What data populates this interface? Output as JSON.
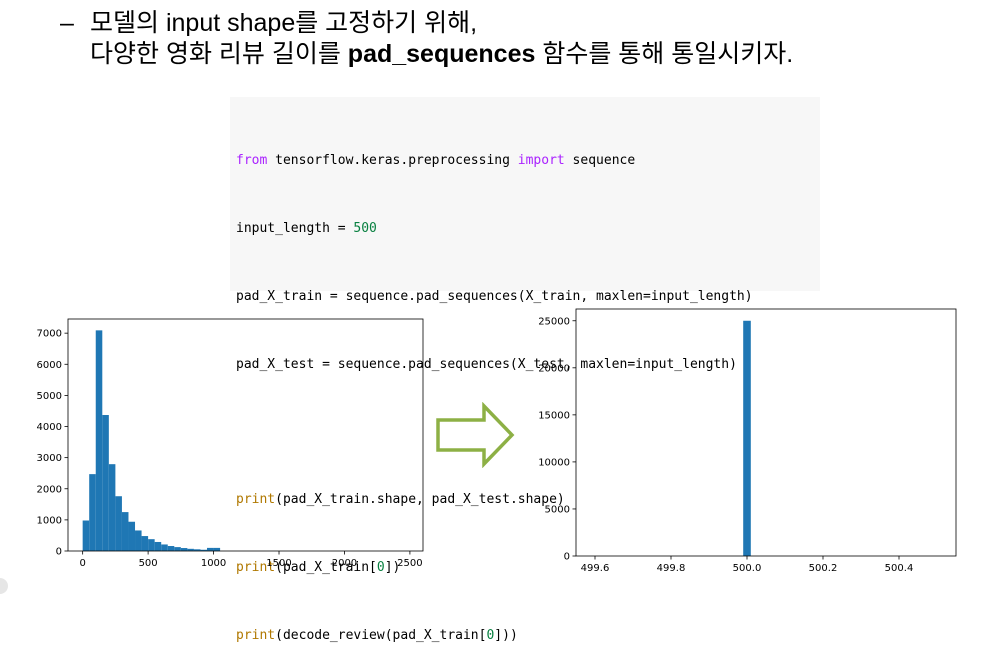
{
  "bullets": {
    "dash": "–",
    "line1_a": "모델의 ",
    "line1_b": "input shape",
    "line1_c": "를 고정하기 위해,",
    "line2_a": "다양한 영화 리뷰 길이를 ",
    "line2_b": "pad_sequences",
    "line2_c": " 함수를 통해 통일시키자."
  },
  "code": {
    "l1_kw1": "from",
    "l1_mid": " tensorflow.keras.preprocessing ",
    "l1_kw2": "import",
    "l1_end": " sequence",
    "l2_a": "input_length = ",
    "l2_num": "500",
    "l3": "pad_X_train = sequence.pad_sequences(X_train, maxlen=input_length)",
    "l4": "pad_X_test = sequence.pad_sequences(X_test, maxlen=input_length)",
    "l5": "",
    "l6_fn": "print",
    "l6_rest": "(pad_X_train.shape, pad_X_test.shape)",
    "l7_fn": "print",
    "l7_a": "(pad_X_train[",
    "l7_num": "0",
    "l7_b": "])",
    "l8_fn": "print",
    "l8_a": "(decode_review(pad_X_train[",
    "l8_num": "0",
    "l8_b": "]))"
  },
  "colors": {
    "bar": "#1f77b4",
    "arrow": "#8db045",
    "keyword": "#aa22ff",
    "number": "#088040",
    "builtin": "#b07800"
  },
  "chart_data": [
    {
      "type": "bar",
      "title": "",
      "xlabel": "",
      "ylabel": "",
      "xlim": [
        -112,
        2600
      ],
      "ylim": [
        0,
        7455
      ],
      "xticks": [
        "0",
        "500",
        "1000",
        "1500",
        "2000",
        "2500"
      ],
      "yticks": [
        "0",
        "1000",
        "2000",
        "3000",
        "4000",
        "5000",
        "6000",
        "7000"
      ],
      "bin_width": 50,
      "bin_starts": [
        0,
        50,
        100,
        150,
        200,
        250,
        300,
        350,
        400,
        450,
        500,
        550,
        600,
        650,
        700,
        750,
        800,
        850,
        900,
        950,
        1000
      ],
      "values": [
        980,
        2470,
        7090,
        4370,
        2790,
        1760,
        1250,
        940,
        660,
        480,
        380,
        290,
        210,
        160,
        125,
        95,
        70,
        55,
        40,
        100,
        100
      ]
    },
    {
      "type": "bar",
      "title": "",
      "xlabel": "",
      "ylabel": "",
      "xlim": [
        499.55,
        500.55
      ],
      "ylim": [
        0,
        26250
      ],
      "xticks": [
        "499.6",
        "499.8",
        "500.0",
        "500.2",
        "500.4"
      ],
      "yticks": [
        "0",
        "5000",
        "10000",
        "15000",
        "20000",
        "25000"
      ],
      "bins": [
        {
          "start": 499.99,
          "end": 500.01,
          "value": 25000
        }
      ]
    }
  ]
}
